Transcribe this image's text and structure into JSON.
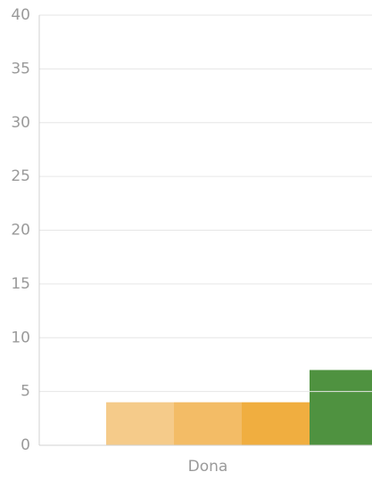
{
  "chart_data": {
    "type": "bar",
    "categories": [
      "Dona"
    ],
    "series": [
      {
        "color": "#f5cb8a",
        "values": [
          4
        ]
      },
      {
        "color": "#f3bc66",
        "values": [
          4
        ]
      },
      {
        "color": "#f0ae40",
        "values": [
          4
        ]
      },
      {
        "color": "#4f9240",
        "values": [
          7
        ]
      }
    ],
    "ylim": [
      0,
      40
    ],
    "yticks": [
      0,
      5,
      10,
      15,
      20,
      25,
      30,
      35,
      40
    ],
    "grid": true
  }
}
